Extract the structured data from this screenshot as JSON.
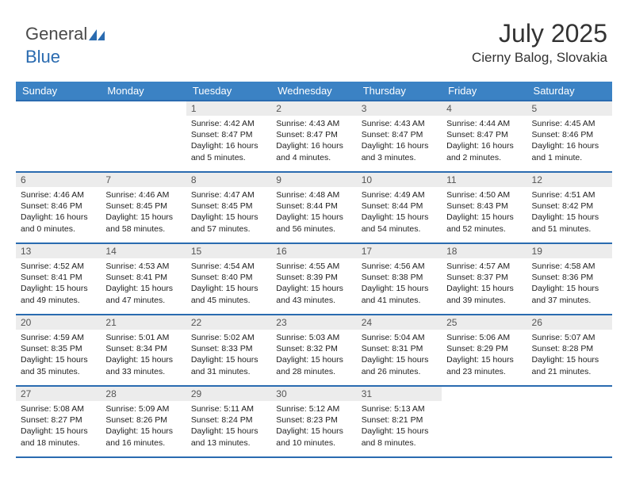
{
  "logo": {
    "text1": "General",
    "text2": "Blue"
  },
  "title": "July 2025",
  "location": "Cierny Balog, Slovakia",
  "colors": {
    "header_bg": "#3b82c4",
    "border": "#2a6bb0",
    "daynum_bg": "#ececec",
    "text": "#222222"
  },
  "weekdays": [
    "Sunday",
    "Monday",
    "Tuesday",
    "Wednesday",
    "Thursday",
    "Friday",
    "Saturday"
  ],
  "weeks": [
    [
      null,
      null,
      {
        "n": "1",
        "sr": "Sunrise: 4:42 AM",
        "ss": "Sunset: 8:47 PM",
        "d1": "Daylight: 16 hours",
        "d2": "and 5 minutes."
      },
      {
        "n": "2",
        "sr": "Sunrise: 4:43 AM",
        "ss": "Sunset: 8:47 PM",
        "d1": "Daylight: 16 hours",
        "d2": "and 4 minutes."
      },
      {
        "n": "3",
        "sr": "Sunrise: 4:43 AM",
        "ss": "Sunset: 8:47 PM",
        "d1": "Daylight: 16 hours",
        "d2": "and 3 minutes."
      },
      {
        "n": "4",
        "sr": "Sunrise: 4:44 AM",
        "ss": "Sunset: 8:47 PM",
        "d1": "Daylight: 16 hours",
        "d2": "and 2 minutes."
      },
      {
        "n": "5",
        "sr": "Sunrise: 4:45 AM",
        "ss": "Sunset: 8:46 PM",
        "d1": "Daylight: 16 hours",
        "d2": "and 1 minute."
      }
    ],
    [
      {
        "n": "6",
        "sr": "Sunrise: 4:46 AM",
        "ss": "Sunset: 8:46 PM",
        "d1": "Daylight: 16 hours",
        "d2": "and 0 minutes."
      },
      {
        "n": "7",
        "sr": "Sunrise: 4:46 AM",
        "ss": "Sunset: 8:45 PM",
        "d1": "Daylight: 15 hours",
        "d2": "and 58 minutes."
      },
      {
        "n": "8",
        "sr": "Sunrise: 4:47 AM",
        "ss": "Sunset: 8:45 PM",
        "d1": "Daylight: 15 hours",
        "d2": "and 57 minutes."
      },
      {
        "n": "9",
        "sr": "Sunrise: 4:48 AM",
        "ss": "Sunset: 8:44 PM",
        "d1": "Daylight: 15 hours",
        "d2": "and 56 minutes."
      },
      {
        "n": "10",
        "sr": "Sunrise: 4:49 AM",
        "ss": "Sunset: 8:44 PM",
        "d1": "Daylight: 15 hours",
        "d2": "and 54 minutes."
      },
      {
        "n": "11",
        "sr": "Sunrise: 4:50 AM",
        "ss": "Sunset: 8:43 PM",
        "d1": "Daylight: 15 hours",
        "d2": "and 52 minutes."
      },
      {
        "n": "12",
        "sr": "Sunrise: 4:51 AM",
        "ss": "Sunset: 8:42 PM",
        "d1": "Daylight: 15 hours",
        "d2": "and 51 minutes."
      }
    ],
    [
      {
        "n": "13",
        "sr": "Sunrise: 4:52 AM",
        "ss": "Sunset: 8:41 PM",
        "d1": "Daylight: 15 hours",
        "d2": "and 49 minutes."
      },
      {
        "n": "14",
        "sr": "Sunrise: 4:53 AM",
        "ss": "Sunset: 8:41 PM",
        "d1": "Daylight: 15 hours",
        "d2": "and 47 minutes."
      },
      {
        "n": "15",
        "sr": "Sunrise: 4:54 AM",
        "ss": "Sunset: 8:40 PM",
        "d1": "Daylight: 15 hours",
        "d2": "and 45 minutes."
      },
      {
        "n": "16",
        "sr": "Sunrise: 4:55 AM",
        "ss": "Sunset: 8:39 PM",
        "d1": "Daylight: 15 hours",
        "d2": "and 43 minutes."
      },
      {
        "n": "17",
        "sr": "Sunrise: 4:56 AM",
        "ss": "Sunset: 8:38 PM",
        "d1": "Daylight: 15 hours",
        "d2": "and 41 minutes."
      },
      {
        "n": "18",
        "sr": "Sunrise: 4:57 AM",
        "ss": "Sunset: 8:37 PM",
        "d1": "Daylight: 15 hours",
        "d2": "and 39 minutes."
      },
      {
        "n": "19",
        "sr": "Sunrise: 4:58 AM",
        "ss": "Sunset: 8:36 PM",
        "d1": "Daylight: 15 hours",
        "d2": "and 37 minutes."
      }
    ],
    [
      {
        "n": "20",
        "sr": "Sunrise: 4:59 AM",
        "ss": "Sunset: 8:35 PM",
        "d1": "Daylight: 15 hours",
        "d2": "and 35 minutes."
      },
      {
        "n": "21",
        "sr": "Sunrise: 5:01 AM",
        "ss": "Sunset: 8:34 PM",
        "d1": "Daylight: 15 hours",
        "d2": "and 33 minutes."
      },
      {
        "n": "22",
        "sr": "Sunrise: 5:02 AM",
        "ss": "Sunset: 8:33 PM",
        "d1": "Daylight: 15 hours",
        "d2": "and 31 minutes."
      },
      {
        "n": "23",
        "sr": "Sunrise: 5:03 AM",
        "ss": "Sunset: 8:32 PM",
        "d1": "Daylight: 15 hours",
        "d2": "and 28 minutes."
      },
      {
        "n": "24",
        "sr": "Sunrise: 5:04 AM",
        "ss": "Sunset: 8:31 PM",
        "d1": "Daylight: 15 hours",
        "d2": "and 26 minutes."
      },
      {
        "n": "25",
        "sr": "Sunrise: 5:06 AM",
        "ss": "Sunset: 8:29 PM",
        "d1": "Daylight: 15 hours",
        "d2": "and 23 minutes."
      },
      {
        "n": "26",
        "sr": "Sunrise: 5:07 AM",
        "ss": "Sunset: 8:28 PM",
        "d1": "Daylight: 15 hours",
        "d2": "and 21 minutes."
      }
    ],
    [
      {
        "n": "27",
        "sr": "Sunrise: 5:08 AM",
        "ss": "Sunset: 8:27 PM",
        "d1": "Daylight: 15 hours",
        "d2": "and 18 minutes."
      },
      {
        "n": "28",
        "sr": "Sunrise: 5:09 AM",
        "ss": "Sunset: 8:26 PM",
        "d1": "Daylight: 15 hours",
        "d2": "and 16 minutes."
      },
      {
        "n": "29",
        "sr": "Sunrise: 5:11 AM",
        "ss": "Sunset: 8:24 PM",
        "d1": "Daylight: 15 hours",
        "d2": "and 13 minutes."
      },
      {
        "n": "30",
        "sr": "Sunrise: 5:12 AM",
        "ss": "Sunset: 8:23 PM",
        "d1": "Daylight: 15 hours",
        "d2": "and 10 minutes."
      },
      {
        "n": "31",
        "sr": "Sunrise: 5:13 AM",
        "ss": "Sunset: 8:21 PM",
        "d1": "Daylight: 15 hours",
        "d2": "and 8 minutes."
      },
      null,
      null
    ]
  ]
}
